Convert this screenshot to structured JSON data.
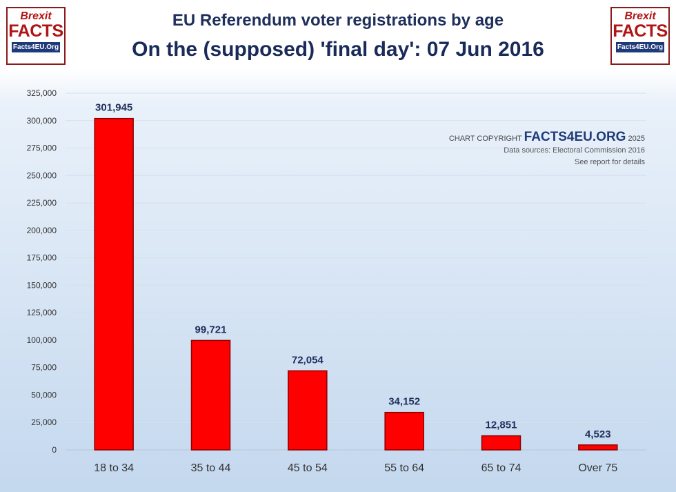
{
  "logo": {
    "line1": "Brexit",
    "line2": "FACTS",
    "url": "Facts4EU.Org"
  },
  "title": "EU Referendum voter registrations by age",
  "subtitle": "On the (supposed) 'final day': 07 Jun 2016",
  "copyright": {
    "prefix": "CHART COPYRIGHT",
    "brand": "FACTS4EU.ORG",
    "year": "2025",
    "source": "Data sources: Electoral Commission 2016",
    "note": "See report for details"
  },
  "chart_data": {
    "type": "bar",
    "categories": [
      "18 to 34",
      "35 to 44",
      "45 to 54",
      "55 to 64",
      "65 to 74",
      "Over 75"
    ],
    "values": [
      301945,
      99721,
      72054,
      34152,
      12851,
      4523
    ],
    "data_labels": [
      "301,945",
      "99,721",
      "72,054",
      "34,152",
      "12,851",
      "4,523"
    ],
    "yticks": [
      "0",
      "25,000",
      "50,000",
      "75,000",
      "100,000",
      "125,000",
      "150,000",
      "175,000",
      "200,000",
      "225,000",
      "250,000",
      "275,000",
      "300,000",
      "325,000"
    ],
    "ylim": [
      0,
      325000
    ],
    "ytick_step": 25000,
    "grid": true,
    "bar_color": "#ff0000",
    "bar_border_color": "#8b0000",
    "label_color": "#1f2f5c"
  }
}
